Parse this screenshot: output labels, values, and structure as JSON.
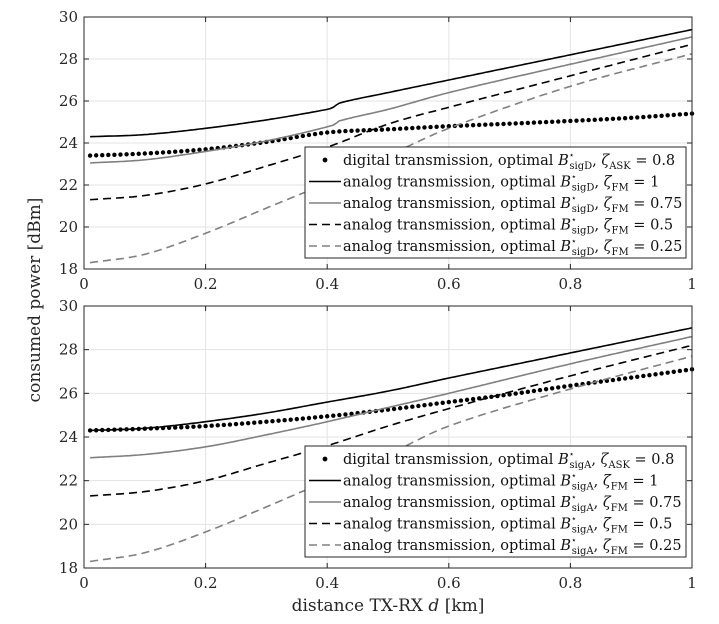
{
  "chart_data": [
    {
      "type": "line",
      "xlabel": "",
      "ylabel": "consumed power [dBm]",
      "xlim": [
        0,
        1
      ],
      "ylim": [
        18,
        30
      ],
      "xticks": [
        "0",
        "0.2",
        "0.4",
        "0.6",
        "0.8",
        "1"
      ],
      "yticks": [
        "18",
        "20",
        "22",
        "24",
        "26",
        "28",
        "30"
      ],
      "grid": true,
      "legend_position": "bottom-right",
      "series": [
        {
          "name": "digital transmission, optimal B⋆sigD, ζASK = 0.8",
          "legend": {
            "pre": "digital transmission, optimal ",
            "B": "B",
            "star": "⋆",
            "bsub": "sigD",
            "zeta": "ζ",
            "zsub": "ASK",
            "val": " = 0.8"
          },
          "style": "dots",
          "color": "#000000",
          "x": [
            0.01,
            0.1,
            0.2,
            0.3,
            0.4,
            0.5,
            0.6,
            0.7,
            0.8,
            0.9,
            1.0
          ],
          "y": [
            23.4,
            23.5,
            23.7,
            24.05,
            24.5,
            24.65,
            24.8,
            24.92,
            25.05,
            25.2,
            25.4
          ]
        },
        {
          "name": "analog transmission, optimal B⋆sigD, ζFM = 1",
          "legend": {
            "pre": "analog transmission, optimal ",
            "B": "B",
            "star": "⋆",
            "bsub": "sigD",
            "zeta": "ζ",
            "zsub": "FM",
            "val": " = 1"
          },
          "style": "solid",
          "color": "#000000",
          "x": [
            0.01,
            0.1,
            0.2,
            0.3,
            0.4,
            0.41,
            0.42,
            0.5,
            0.6,
            0.8,
            1.0
          ],
          "y": [
            24.3,
            24.4,
            24.7,
            25.1,
            25.6,
            25.7,
            25.9,
            26.4,
            27.0,
            28.2,
            29.4
          ]
        },
        {
          "name": "analog transmission, optimal B⋆sigD, ζFM = 0.75",
          "legend": {
            "pre": "analog transmission, optimal ",
            "B": "B",
            "star": "⋆",
            "bsub": "sigD",
            "zeta": "ζ",
            "zsub": "FM",
            "val": " = 0.75"
          },
          "style": "solid",
          "color": "#808080",
          "x": [
            0.01,
            0.1,
            0.2,
            0.3,
            0.41,
            0.42,
            0.5,
            0.6,
            0.8,
            1.0
          ],
          "y": [
            23.05,
            23.2,
            23.6,
            24.1,
            24.85,
            25.05,
            25.6,
            26.4,
            27.75,
            29.05
          ]
        },
        {
          "name": "analog transmission, optimal B⋆sigD, ζFM = 0.5",
          "legend": {
            "pre": "analog transmission, optimal ",
            "B": "B",
            "star": "⋆",
            "bsub": "sigD",
            "zeta": "ζ",
            "zsub": "FM",
            "val": " = 0.5"
          },
          "style": "dashed",
          "color": "#000000",
          "x": [
            0.01,
            0.1,
            0.2,
            0.3,
            0.4,
            0.5,
            0.6,
            0.8,
            1.0
          ],
          "y": [
            21.3,
            21.5,
            22.05,
            22.9,
            23.8,
            24.9,
            25.7,
            27.2,
            28.7
          ]
        },
        {
          "name": "analog transmission, optimal B⋆sigD, ζFM = 0.25",
          "legend": {
            "pre": "analog transmission, optimal ",
            "B": "B",
            "star": "⋆",
            "bsub": "sigD",
            "zeta": "ζ",
            "zsub": "FM",
            "val": " = 0.25"
          },
          "style": "dashed",
          "color": "#808080",
          "x": [
            0.01,
            0.1,
            0.2,
            0.3,
            0.4,
            0.5,
            0.6,
            0.8,
            1.0
          ],
          "y": [
            18.3,
            18.7,
            19.7,
            20.9,
            22.1,
            23.4,
            24.7,
            26.7,
            28.25
          ]
        }
      ]
    },
    {
      "type": "line",
      "xlabel": "distance TX-RX d [km]",
      "ylabel": "consumed power [dBm]",
      "xlim": [
        0,
        1
      ],
      "ylim": [
        18,
        30
      ],
      "xticks": [
        "0",
        "0.2",
        "0.4",
        "0.6",
        "0.8",
        "1"
      ],
      "yticks": [
        "18",
        "20",
        "22",
        "24",
        "26",
        "28",
        "30"
      ],
      "grid": true,
      "legend_position": "bottom-right",
      "series": [
        {
          "name": "digital transmission, optimal B⋆sigA, ζASK = 0.8",
          "legend": {
            "pre": "digital transmission, optimal ",
            "B": "B",
            "star": "⋆",
            "bsub": "sigA",
            "zeta": "ζ",
            "zsub": "ASK",
            "val": " = 0.8"
          },
          "style": "dots",
          "color": "#000000",
          "x": [
            0.01,
            0.1,
            0.2,
            0.3,
            0.4,
            0.5,
            0.6,
            0.7,
            0.8,
            0.9,
            1.0
          ],
          "y": [
            24.3,
            24.38,
            24.5,
            24.7,
            24.95,
            25.25,
            25.6,
            25.95,
            26.35,
            26.72,
            27.1
          ]
        },
        {
          "name": "analog transmission, optimal B⋆sigA, ζFM = 1",
          "legend": {
            "pre": "analog transmission, optimal ",
            "B": "B",
            "star": "⋆",
            "bsub": "sigA",
            "zeta": "ζ",
            "zsub": "FM",
            "val": " = 1"
          },
          "style": "solid",
          "color": "#000000",
          "x": [
            0.01,
            0.1,
            0.2,
            0.3,
            0.4,
            0.5,
            0.6,
            0.8,
            1.0
          ],
          "y": [
            24.3,
            24.4,
            24.7,
            25.1,
            25.6,
            26.1,
            26.7,
            27.85,
            29.0
          ]
        },
        {
          "name": "analog transmission, optimal B⋆sigA, ζFM = 0.75",
          "legend": {
            "pre": "analog transmission, optimal ",
            "B": "B",
            "star": "⋆",
            "bsub": "sigA",
            "zeta": "ζ",
            "zsub": "FM",
            "val": " = 0.75"
          },
          "style": "solid",
          "color": "#808080",
          "x": [
            0.01,
            0.1,
            0.2,
            0.3,
            0.4,
            0.5,
            0.6,
            0.8,
            1.0
          ],
          "y": [
            23.05,
            23.2,
            23.55,
            24.1,
            24.7,
            25.35,
            26.0,
            27.35,
            28.6
          ]
        },
        {
          "name": "analog transmission, optimal B⋆sigA, ζFM = 0.5",
          "legend": {
            "pre": "analog transmission, optimal ",
            "B": "B",
            "star": "⋆",
            "bsub": "sigA",
            "zeta": "ζ",
            "zsub": "FM",
            "val": " = 0.5"
          },
          "style": "dashed",
          "color": "#000000",
          "x": [
            0.01,
            0.1,
            0.2,
            0.3,
            0.4,
            0.5,
            0.6,
            0.8,
            1.0
          ],
          "y": [
            21.3,
            21.5,
            22.0,
            22.8,
            23.6,
            24.5,
            25.3,
            26.8,
            28.2
          ]
        },
        {
          "name": "analog transmission, optimal B⋆sigA, ζFM = 0.25",
          "legend": {
            "pre": "analog transmission, optimal ",
            "B": "B",
            "star": "⋆",
            "bsub": "sigA",
            "zeta": "ζ",
            "zsub": "FM",
            "val": " = 0.25"
          },
          "style": "dashed",
          "color": "#808080",
          "x": [
            0.01,
            0.1,
            0.2,
            0.3,
            0.4,
            0.5,
            0.6,
            0.8,
            1.0
          ],
          "y": [
            18.3,
            18.7,
            19.65,
            20.8,
            22.0,
            23.2,
            24.5,
            26.2,
            27.7
          ]
        }
      ]
    }
  ]
}
